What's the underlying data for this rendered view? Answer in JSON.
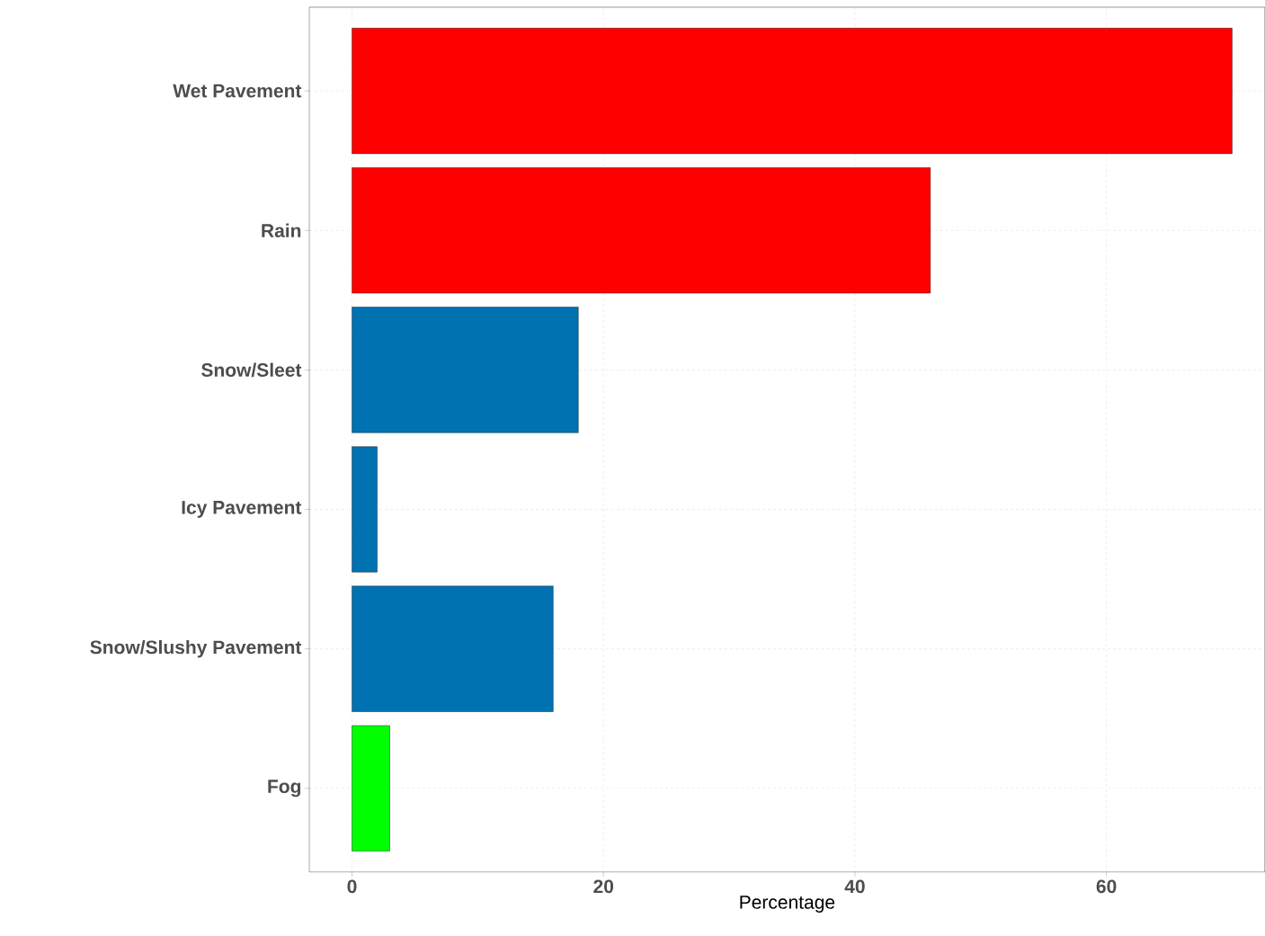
{
  "chart_data": {
    "type": "bar",
    "orientation": "horizontal",
    "xlabel": "Percentage",
    "categories": [
      "Wet Pavement",
      "Rain",
      "Snow/Sleet",
      "Icy Pavement",
      "Snow/Slushy Pavement",
      "Fog"
    ],
    "values": [
      70,
      46,
      18,
      2,
      16,
      3
    ],
    "colors": [
      "#ff0000",
      "#ff0000",
      "#0072b2",
      "#0072b2",
      "#0072b2",
      "#00ff00"
    ],
    "xlim": [
      -3.4,
      72.6
    ],
    "xticks": [
      0,
      20,
      40,
      60
    ],
    "grid": true
  }
}
